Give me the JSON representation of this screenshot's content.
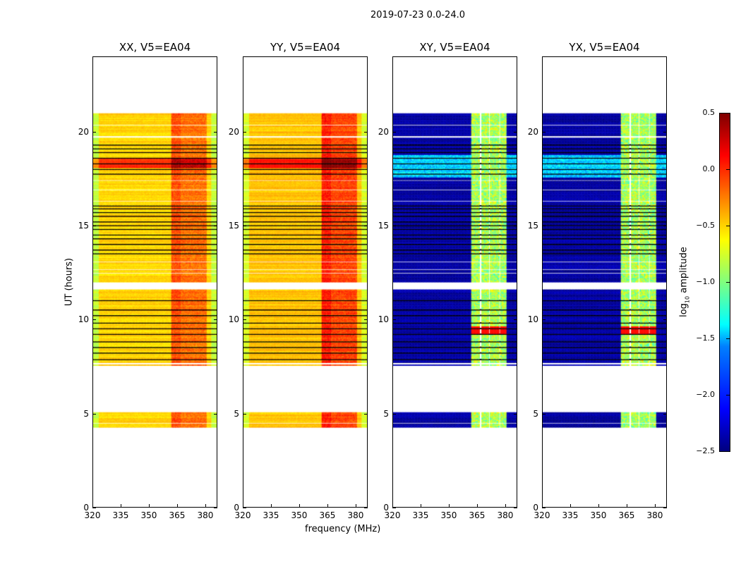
{
  "figure_title": "2019-07-23 0.0-24.0",
  "chart_data": {
    "type": "heatmap",
    "xlabel": "frequency (MHz)",
    "ylabel": "UT (hours)",
    "xlim": [
      320,
      386.4
    ],
    "ylim": [
      0,
      24
    ],
    "xticks": [
      320,
      335,
      350,
      365,
      380
    ],
    "yticks": [
      0,
      5,
      10,
      15,
      20
    ],
    "panels": [
      {
        "title": "XX, V5=EA04",
        "base": -0.5,
        "band": 0.4,
        "kind": "parallel"
      },
      {
        "title": "YY, V5=EA04",
        "base": -0.45,
        "band": 0.5,
        "kind": "parallel"
      },
      {
        "title": "XY, V5=EA04",
        "base": -2.4,
        "band": 1.4,
        "kind": "cross"
      },
      {
        "title": "YX, V5=EA04",
        "base": -2.4,
        "band": 1.4,
        "kind": "cross"
      }
    ],
    "time_segments_hours": [
      [
        4.2,
        5.0
      ],
      [
        7.5,
        11.6
      ],
      [
        12.0,
        21.0
      ]
    ],
    "bright_band_mhz": [
      362,
      381
    ],
    "flagged_white_rows_hours": [
      4.45,
      7.62,
      12.45,
      12.65,
      13.05,
      16.3,
      16.9,
      17.4,
      19.7,
      19.75,
      20.35
    ],
    "flagged_black_rows_hours": [
      7.85,
      8.2,
      8.5,
      8.8,
      9.2,
      9.5,
      9.8,
      10.2,
      10.5,
      11.0,
      13.5,
      13.7,
      14.0,
      14.3,
      14.5,
      14.8,
      15.0,
      15.2,
      15.5,
      15.7,
      15.9,
      16.05,
      17.75,
      18.0,
      18.3,
      18.6,
      18.9,
      19.1,
      19.3
    ],
    "cross_flare_hours": [
      9.15,
      9.65
    ],
    "colorbar": {
      "label_prefix": "log",
      "label_sub": "10",
      "label_suffix": " amplitude",
      "range": [
        -2.5,
        0.5
      ],
      "ticks": [
        "0.5",
        "0.0",
        "−0.5",
        "−1.0",
        "−1.5",
        "−2.0",
        "−2.5"
      ],
      "colormap": "jet"
    }
  }
}
